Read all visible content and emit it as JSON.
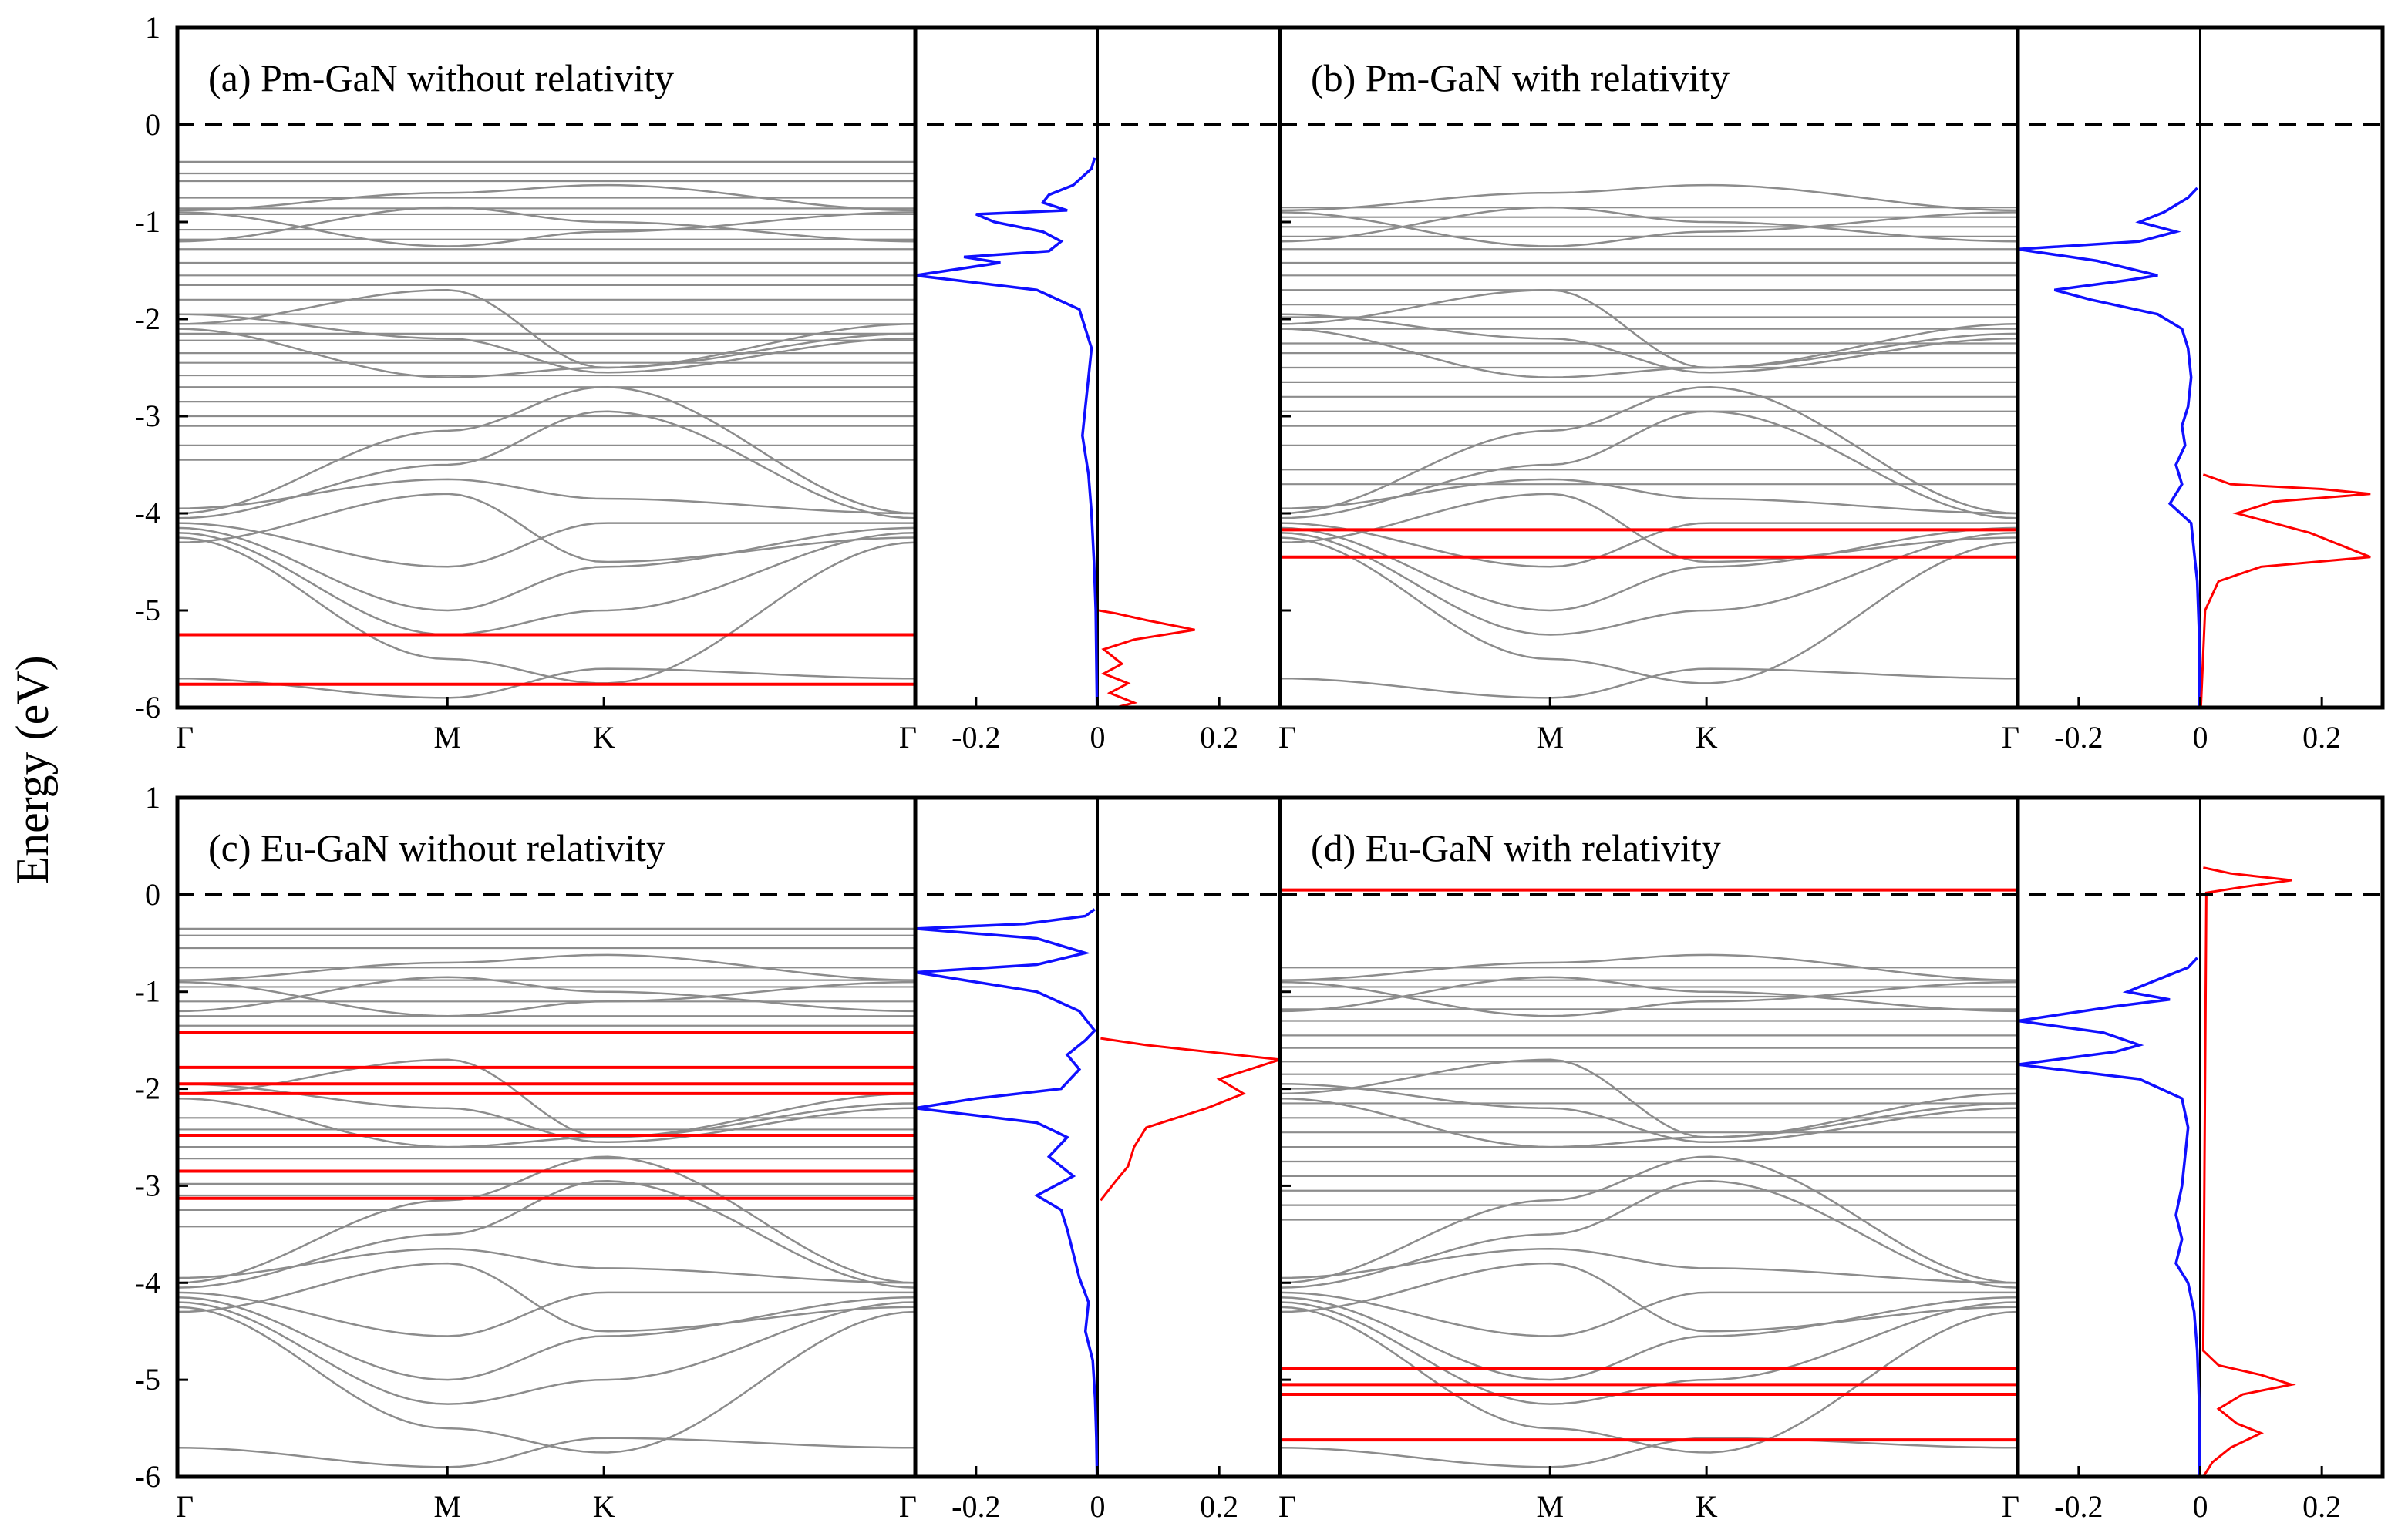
{
  "chart_data": {
    "type": "line",
    "ylabel": "Energy (eV)",
    "ylim": [
      -6,
      1
    ],
    "yticks": [
      "1",
      "0",
      "-1",
      "-2",
      "-3",
      "-4",
      "-5",
      "-6"
    ],
    "fermi_level": 0,
    "kpath": [
      "Γ",
      "M",
      "K",
      "Γ"
    ],
    "dos_ticks": [
      "-0.2",
      "0",
      "0.2"
    ],
    "dos_xlim": [
      -0.3,
      0.3
    ],
    "colors": {
      "bands": "#8c8c8c",
      "f_bands": "#ff0000",
      "dos_neg": "#1010ff",
      "dos_pos": "#ff0000",
      "fermi": "#000000"
    },
    "panels": [
      {
        "title": "(a) Pm-GaN without relativity",
        "flat_gray": [
          -0.38,
          -0.5,
          -0.58,
          -0.75,
          -0.86,
          -0.92,
          -1.08,
          -1.18,
          -1.28,
          -1.42,
          -1.55,
          -1.65,
          -1.8,
          -1.95,
          -2.05,
          -2.15,
          -2.22,
          -2.35,
          -2.45,
          -2.58,
          -2.7,
          -2.85,
          -3.0,
          -3.1,
          -3.3,
          -3.45
        ],
        "flat_f": [
          -5.25,
          -5.76
        ],
        "dos_neg": [
          [
            -0.34,
            -0.005
          ],
          [
            -0.45,
            -0.01
          ],
          [
            -0.62,
            -0.04
          ],
          [
            -0.72,
            -0.08
          ],
          [
            -0.8,
            -0.09
          ],
          [
            -0.88,
            -0.05
          ],
          [
            -0.92,
            -0.2
          ],
          [
            -1.0,
            -0.17
          ],
          [
            -1.1,
            -0.09
          ],
          [
            -1.2,
            -0.06
          ],
          [
            -1.3,
            -0.08
          ],
          [
            -1.36,
            -0.22
          ],
          [
            -1.42,
            -0.16
          ],
          [
            -1.55,
            -0.3
          ],
          [
            -1.7,
            -0.1
          ],
          [
            -1.9,
            -0.03
          ],
          [
            -2.1,
            -0.02
          ],
          [
            -2.3,
            -0.01
          ],
          [
            -2.6,
            -0.015
          ],
          [
            -2.9,
            -0.02
          ],
          [
            -3.2,
            -0.025
          ],
          [
            -3.6,
            -0.015
          ],
          [
            -4.0,
            -0.01
          ],
          [
            -4.5,
            -0.006
          ],
          [
            -5.0,
            -0.003
          ],
          [
            -5.5,
            -0.002
          ],
          [
            -6.0,
            -0.001
          ]
        ],
        "dos_pos": [
          [
            -5.0,
            0.002
          ],
          [
            -5.03,
            0.03
          ],
          [
            -5.1,
            0.08
          ],
          [
            -5.2,
            0.16
          ],
          [
            -5.3,
            0.06
          ],
          [
            -5.4,
            0.01
          ],
          [
            -5.55,
            0.04
          ],
          [
            -5.65,
            0.01
          ],
          [
            -5.75,
            0.05
          ],
          [
            -5.85,
            0.02
          ],
          [
            -5.95,
            0.06
          ],
          [
            -6.0,
            0.03
          ]
        ]
      },
      {
        "title": "(b) Pm-GaN with relativity",
        "flat_gray": [
          -0.85,
          -0.95,
          -1.05,
          -1.15,
          -1.28,
          -1.42,
          -1.55,
          -1.7,
          -1.85,
          -1.98,
          -2.1,
          -2.25,
          -2.35,
          -2.5,
          -2.65,
          -2.8,
          -2.95,
          -3.1,
          -3.3,
          -3.55,
          -3.7
        ],
        "flat_f": [
          -4.17,
          -4.45
        ],
        "dos_neg": [
          [
            -0.65,
            -0.005
          ],
          [
            -0.75,
            -0.02
          ],
          [
            -0.9,
            -0.06
          ],
          [
            -1.0,
            -0.1
          ],
          [
            -1.1,
            -0.04
          ],
          [
            -1.2,
            -0.1
          ],
          [
            -1.28,
            -0.3
          ],
          [
            -1.4,
            -0.17
          ],
          [
            -1.55,
            -0.07
          ],
          [
            -1.6,
            -0.12
          ],
          [
            -1.7,
            -0.24
          ],
          [
            -1.8,
            -0.18
          ],
          [
            -1.95,
            -0.07
          ],
          [
            -2.1,
            -0.03
          ],
          [
            -2.3,
            -0.02
          ],
          [
            -2.6,
            -0.015
          ],
          [
            -2.9,
            -0.02
          ],
          [
            -3.1,
            -0.03
          ],
          [
            -3.3,
            -0.025
          ],
          [
            -3.5,
            -0.04
          ],
          [
            -3.7,
            -0.03
          ],
          [
            -3.9,
            -0.05
          ],
          [
            -4.1,
            -0.015
          ],
          [
            -4.4,
            -0.01
          ],
          [
            -4.7,
            -0.005
          ],
          [
            -5.2,
            -0.002
          ],
          [
            -6.0,
            -0.001
          ]
        ],
        "dos_pos": [
          [
            -3.6,
            0.005
          ],
          [
            -3.7,
            0.05
          ],
          [
            -3.75,
            0.2
          ],
          [
            -3.8,
            0.28
          ],
          [
            -3.88,
            0.12
          ],
          [
            -4.0,
            0.06
          ],
          [
            -4.1,
            0.12
          ],
          [
            -4.2,
            0.18
          ],
          [
            -4.35,
            0.24
          ],
          [
            -4.45,
            0.28
          ],
          [
            -4.55,
            0.1
          ],
          [
            -4.7,
            0.03
          ],
          [
            -5.0,
            0.008
          ],
          [
            -6.0,
            0.001
          ]
        ]
      },
      {
        "title": "(c) Eu-GaN without relativity",
        "flat_gray": [
          -0.35,
          -0.42,
          -0.55,
          -0.75,
          -0.88,
          -0.95,
          -1.1,
          -1.25,
          -1.35,
          -2.3,
          -2.42,
          -2.6,
          -2.72,
          -2.85,
          -2.98,
          -3.1,
          -3.25,
          -3.42
        ],
        "flat_f": [
          -1.42,
          -1.78,
          -1.95,
          -2.05,
          -2.48,
          -2.85,
          -3.13
        ],
        "dos_neg": [
          [
            -0.15,
            -0.005
          ],
          [
            -0.22,
            -0.02
          ],
          [
            -0.3,
            -0.12
          ],
          [
            -0.35,
            -0.3
          ],
          [
            -0.45,
            -0.1
          ],
          [
            -0.6,
            -0.02
          ],
          [
            -0.72,
            -0.1
          ],
          [
            -0.8,
            -0.3
          ],
          [
            -1.0,
            -0.1
          ],
          [
            -1.2,
            -0.03
          ],
          [
            -1.4,
            -0.005
          ],
          [
            -1.5,
            -0.02
          ],
          [
            -1.65,
            -0.05
          ],
          [
            -1.8,
            -0.03
          ],
          [
            -2.0,
            -0.06
          ],
          [
            -2.1,
            -0.2
          ],
          [
            -2.2,
            -0.3
          ],
          [
            -2.35,
            -0.1
          ],
          [
            -2.5,
            -0.05
          ],
          [
            -2.7,
            -0.08
          ],
          [
            -2.9,
            -0.04
          ],
          [
            -3.1,
            -0.1
          ],
          [
            -3.25,
            -0.06
          ],
          [
            -3.45,
            -0.05
          ],
          [
            -3.7,
            -0.04
          ],
          [
            -3.95,
            -0.03
          ],
          [
            -4.2,
            -0.015
          ],
          [
            -4.5,
            -0.02
          ],
          [
            -4.8,
            -0.008
          ],
          [
            -5.2,
            -0.004
          ],
          [
            -5.6,
            -0.002
          ],
          [
            -6.0,
            -0.001
          ]
        ],
        "dos_pos": [
          [
            -1.48,
            0.005
          ],
          [
            -1.55,
            0.08
          ],
          [
            -1.7,
            0.3
          ],
          [
            -1.9,
            0.2
          ],
          [
            -2.05,
            0.24
          ],
          [
            -2.2,
            0.18
          ],
          [
            -2.4,
            0.08
          ],
          [
            -2.6,
            0.06
          ],
          [
            -2.8,
            0.05
          ],
          [
            -2.95,
            0.03
          ],
          [
            -3.15,
            0.005
          ]
        ]
      },
      {
        "title": "(d) Eu-GaN with relativity",
        "flat_gray": [
          -0.75,
          -0.88,
          -0.95,
          -1.05,
          -1.18,
          -1.3,
          -1.45,
          -1.58,
          -1.72,
          -1.85,
          -2.0,
          -2.15,
          -2.3,
          -2.45,
          -2.6,
          -2.75,
          -2.9,
          -3.05,
          -3.2,
          -3.35
        ],
        "flat_f": [
          0.05,
          -4.88,
          -5.05,
          -5.15,
          -5.62
        ],
        "dos_neg": [
          [
            -0.65,
            -0.005
          ],
          [
            -0.75,
            -0.02
          ],
          [
            -0.9,
            -0.08
          ],
          [
            -1.0,
            -0.12
          ],
          [
            -1.08,
            -0.05
          ],
          [
            -1.15,
            -0.14
          ],
          [
            -1.3,
            -0.3
          ],
          [
            -1.42,
            -0.16
          ],
          [
            -1.55,
            -0.1
          ],
          [
            -1.62,
            -0.14
          ],
          [
            -1.75,
            -0.3
          ],
          [
            -1.9,
            -0.1
          ],
          [
            -2.1,
            -0.03
          ],
          [
            -2.4,
            -0.02
          ],
          [
            -2.7,
            -0.025
          ],
          [
            -3.0,
            -0.03
          ],
          [
            -3.3,
            -0.04
          ],
          [
            -3.55,
            -0.03
          ],
          [
            -3.8,
            -0.04
          ],
          [
            -4.0,
            -0.02
          ],
          [
            -4.3,
            -0.01
          ],
          [
            -4.7,
            -0.005
          ],
          [
            -5.2,
            -0.002
          ],
          [
            -6.0,
            -0.001
          ]
        ],
        "dos_pos": [
          [
            0.28,
            0.005
          ],
          [
            0.22,
            0.05
          ],
          [
            0.15,
            0.15
          ],
          [
            0.08,
            0.07
          ],
          [
            0.02,
            0.01
          ],
          [
            -4.7,
            0.005
          ],
          [
            -4.85,
            0.03
          ],
          [
            -4.95,
            0.1
          ],
          [
            -5.05,
            0.15
          ],
          [
            -5.15,
            0.07
          ],
          [
            -5.3,
            0.03
          ],
          [
            -5.45,
            0.06
          ],
          [
            -5.55,
            0.1
          ],
          [
            -5.7,
            0.05
          ],
          [
            -5.85,
            0.02
          ],
          [
            -6.0,
            0.005
          ]
        ]
      }
    ]
  }
}
